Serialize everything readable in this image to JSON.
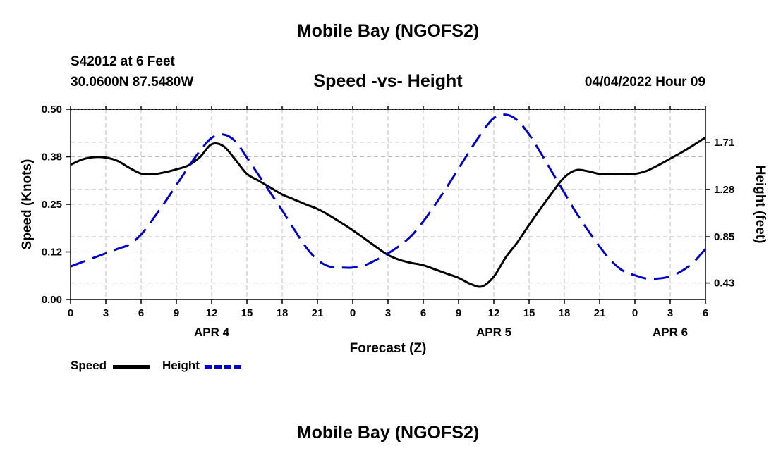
{
  "header": {
    "title": "Mobile Bay (NGOFS2)",
    "station": "S42012 at 6 Feet",
    "coords": "30.0600N  87.5480W",
    "datetime": "04/04/2022 Hour 09",
    "footer_title": "Mobile Bay (NGOFS2)"
  },
  "chart_data": {
    "type": "line",
    "title": "Speed -vs- Height",
    "xlabel": "Forecast (Z)",
    "ylabel_left": "Speed (Knots)",
    "ylabel_right": "Height (feet)",
    "x_range_hours": [
      0,
      54
    ],
    "x_ticks": [
      "0",
      "3",
      "6",
      "9",
      "12",
      "15",
      "18",
      "21",
      "0",
      "3",
      "6",
      "9",
      "12",
      "15",
      "18",
      "21",
      "0",
      "3",
      "6"
    ],
    "day_labels": [
      {
        "label": "APR 4",
        "hour": 12
      },
      {
        "label": "APR 5",
        "hour": 36
      },
      {
        "label": "APR 6",
        "hour": 51
      }
    ],
    "y_left": {
      "range": [
        0,
        0.5
      ],
      "ticks": [
        "0.00",
        "0.12",
        "0.25",
        "0.38",
        "0.50"
      ]
    },
    "y_right": {
      "range": [
        0.28,
        2.01
      ],
      "ticks": [
        "0.43",
        "0.85",
        "1.28",
        "1.71"
      ],
      "tick_values": [
        0.43,
        0.85,
        1.28,
        1.71
      ]
    },
    "grid": true,
    "legend_position": "bottom-left",
    "series": [
      {
        "name": "Speed",
        "axis": "left",
        "color": "#000000",
        "style": "solid",
        "x": [
          0,
          1,
          2,
          3,
          4,
          5,
          6,
          7,
          8,
          9,
          10,
          11,
          12,
          13,
          14,
          15,
          16,
          17,
          18,
          19,
          20,
          21,
          22,
          23,
          24,
          25,
          26,
          27,
          28,
          29,
          30,
          31,
          32,
          33,
          34,
          35,
          36,
          37,
          38,
          39,
          40,
          41,
          42,
          43,
          44,
          45,
          46,
          47,
          48,
          49,
          50,
          51,
          52,
          53,
          54
        ],
        "values": [
          0.354,
          0.368,
          0.374,
          0.373,
          0.364,
          0.346,
          0.331,
          0.329,
          0.334,
          0.342,
          0.352,
          0.374,
          0.408,
          0.403,
          0.368,
          0.33,
          0.312,
          0.294,
          0.276,
          0.263,
          0.25,
          0.238,
          0.221,
          0.202,
          0.182,
          0.16,
          0.138,
          0.117,
          0.104,
          0.096,
          0.09,
          0.079,
          0.068,
          0.057,
          0.041,
          0.034,
          0.06,
          0.11,
          0.15,
          0.196,
          0.24,
          0.282,
          0.321,
          0.34,
          0.337,
          0.33,
          0.33,
          0.329,
          0.33,
          0.338,
          0.353,
          0.37,
          0.387,
          0.406,
          0.426
        ]
      },
      {
        "name": "Height",
        "axis": "right",
        "color": "#0000cc",
        "style": "dashed",
        "x": [
          0,
          1,
          2,
          3,
          4,
          5,
          6,
          7,
          8,
          9,
          10,
          11,
          12,
          13,
          14,
          15,
          16,
          17,
          18,
          19,
          20,
          21,
          22,
          23,
          24,
          25,
          26,
          27,
          28,
          29,
          30,
          31,
          32,
          33,
          34,
          35,
          36,
          37,
          38,
          39,
          40,
          41,
          42,
          43,
          44,
          45,
          46,
          47,
          48,
          49,
          50,
          51,
          52,
          53,
          54
        ],
        "values": [
          0.58,
          0.62,
          0.66,
          0.7,
          0.74,
          0.78,
          0.87,
          1.01,
          1.16,
          1.32,
          1.48,
          1.63,
          1.75,
          1.78,
          1.72,
          1.57,
          1.41,
          1.25,
          1.09,
          0.92,
          0.76,
          0.64,
          0.58,
          0.57,
          0.57,
          0.59,
          0.64,
          0.7,
          0.77,
          0.86,
          0.99,
          1.14,
          1.3,
          1.47,
          1.64,
          1.8,
          1.93,
          1.96,
          1.91,
          1.78,
          1.61,
          1.43,
          1.25,
          1.07,
          0.91,
          0.76,
          0.63,
          0.54,
          0.5,
          0.47,
          0.47,
          0.49,
          0.54,
          0.62,
          0.74
        ]
      }
    ]
  }
}
